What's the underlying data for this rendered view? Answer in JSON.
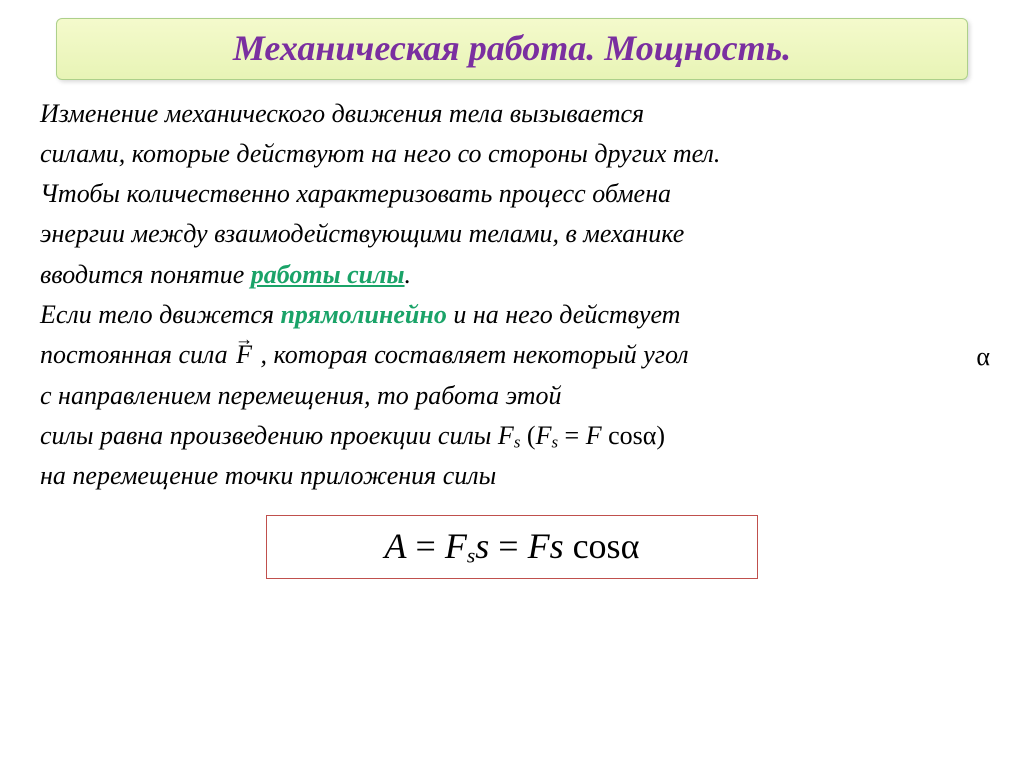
{
  "colors": {
    "title_text": "#7a2fa0",
    "title_bg_top": "#f4facc",
    "title_bg_bottom": "#e8f4b6",
    "title_border": "#add08a",
    "body_text": "#000000",
    "highlight": "#1aa368",
    "formula_border": "#c0504d",
    "formula_bg": "#ffffff"
  },
  "title": "Механическая работа. Мощность.",
  "para1": {
    "l1": "Изменение механического движения тела вызывается",
    "l2": "силами, которые действуют на него  со стороны других тел.",
    "l3": "Чтобы количественно характеризовать процесс обмена",
    "l4": "энергии между взаимодействующими телами, в механике",
    "l5a": "вводится понятие ",
    "l5b": "работы силы",
    "l5c": "."
  },
  "para2": {
    "l1a": "Если тело движется ",
    "l1b": "прямолинейно",
    "l1c": " и на него действует",
    "l2a": "постоянная сила  ",
    "l2b": "F",
    "l2c": " , которая составляет некоторый угол",
    "l2_alpha": "α",
    "l3": "с направлением перемещения, то работа этой",
    "l4a": "силы равна произведению проекции силы   ",
    "l4f_Fs": "F",
    "l4f_s": "s",
    "l4f_open": "  (",
    "l4f_eq": " = ",
    "l4f_F": "F",
    "l4f_cos": " cos",
    "l4f_alpha": "α",
    "l4f_close": ")",
    "l5": "на перемещение точки приложения силы"
  },
  "formula": {
    "A": "A",
    "eq": " = ",
    "F1": "F",
    "s1": "s",
    "s": "s",
    "Fs": "Fs",
    "cos": "cos",
    "alpha": "α"
  }
}
